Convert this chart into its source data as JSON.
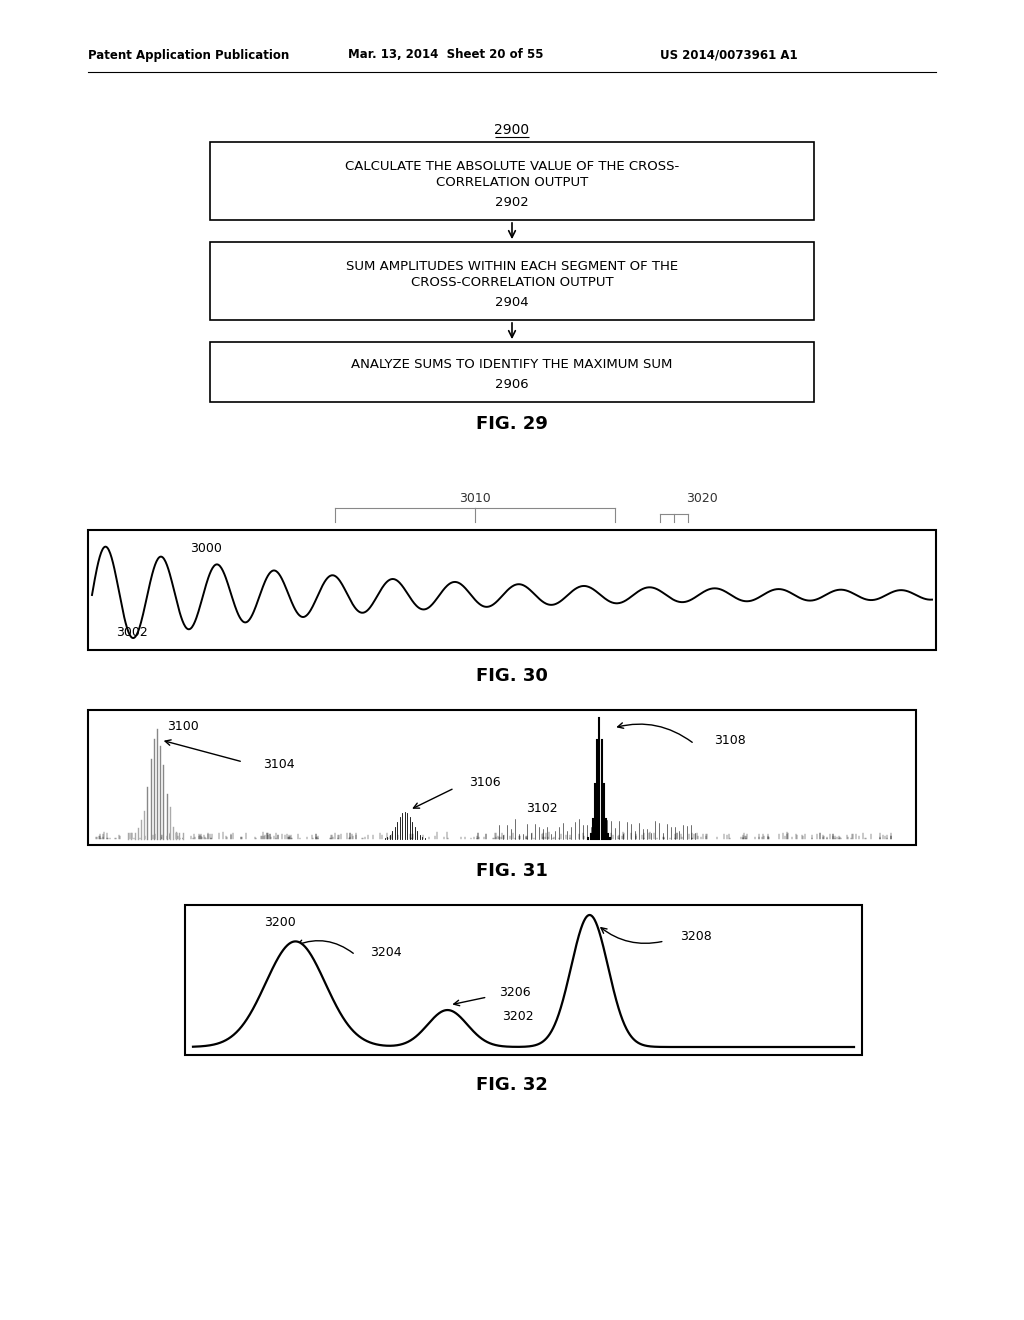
{
  "header_left": "Patent Application Publication",
  "header_mid": "Mar. 13, 2014  Sheet 20 of 55",
  "header_right": "US 2014/0073961 A1",
  "box1_label": "2902",
  "box2_label": "2904",
  "box3_label": "2906",
  "fig29_label": "2900",
  "fig29_caption": "FIG. 29",
  "fig30_caption": "FIG. 30",
  "fig31_caption": "FIG. 31",
  "fig32_caption": "FIG. 32",
  "fig30_label": "3000",
  "fig30_sub1": "3002",
  "fig30_bracket1": "3010",
  "fig30_bracket2": "3020",
  "fig31_label": "3100",
  "fig31_sub1": "3102",
  "fig31_sub2": "3104",
  "fig31_sub3": "3106",
  "fig31_sub4": "3108",
  "fig32_label": "3200",
  "fig32_sub1": "3202",
  "fig32_sub2": "3204",
  "fig32_sub3": "3206",
  "fig32_sub4": "3208",
  "bg_color": "#ffffff"
}
